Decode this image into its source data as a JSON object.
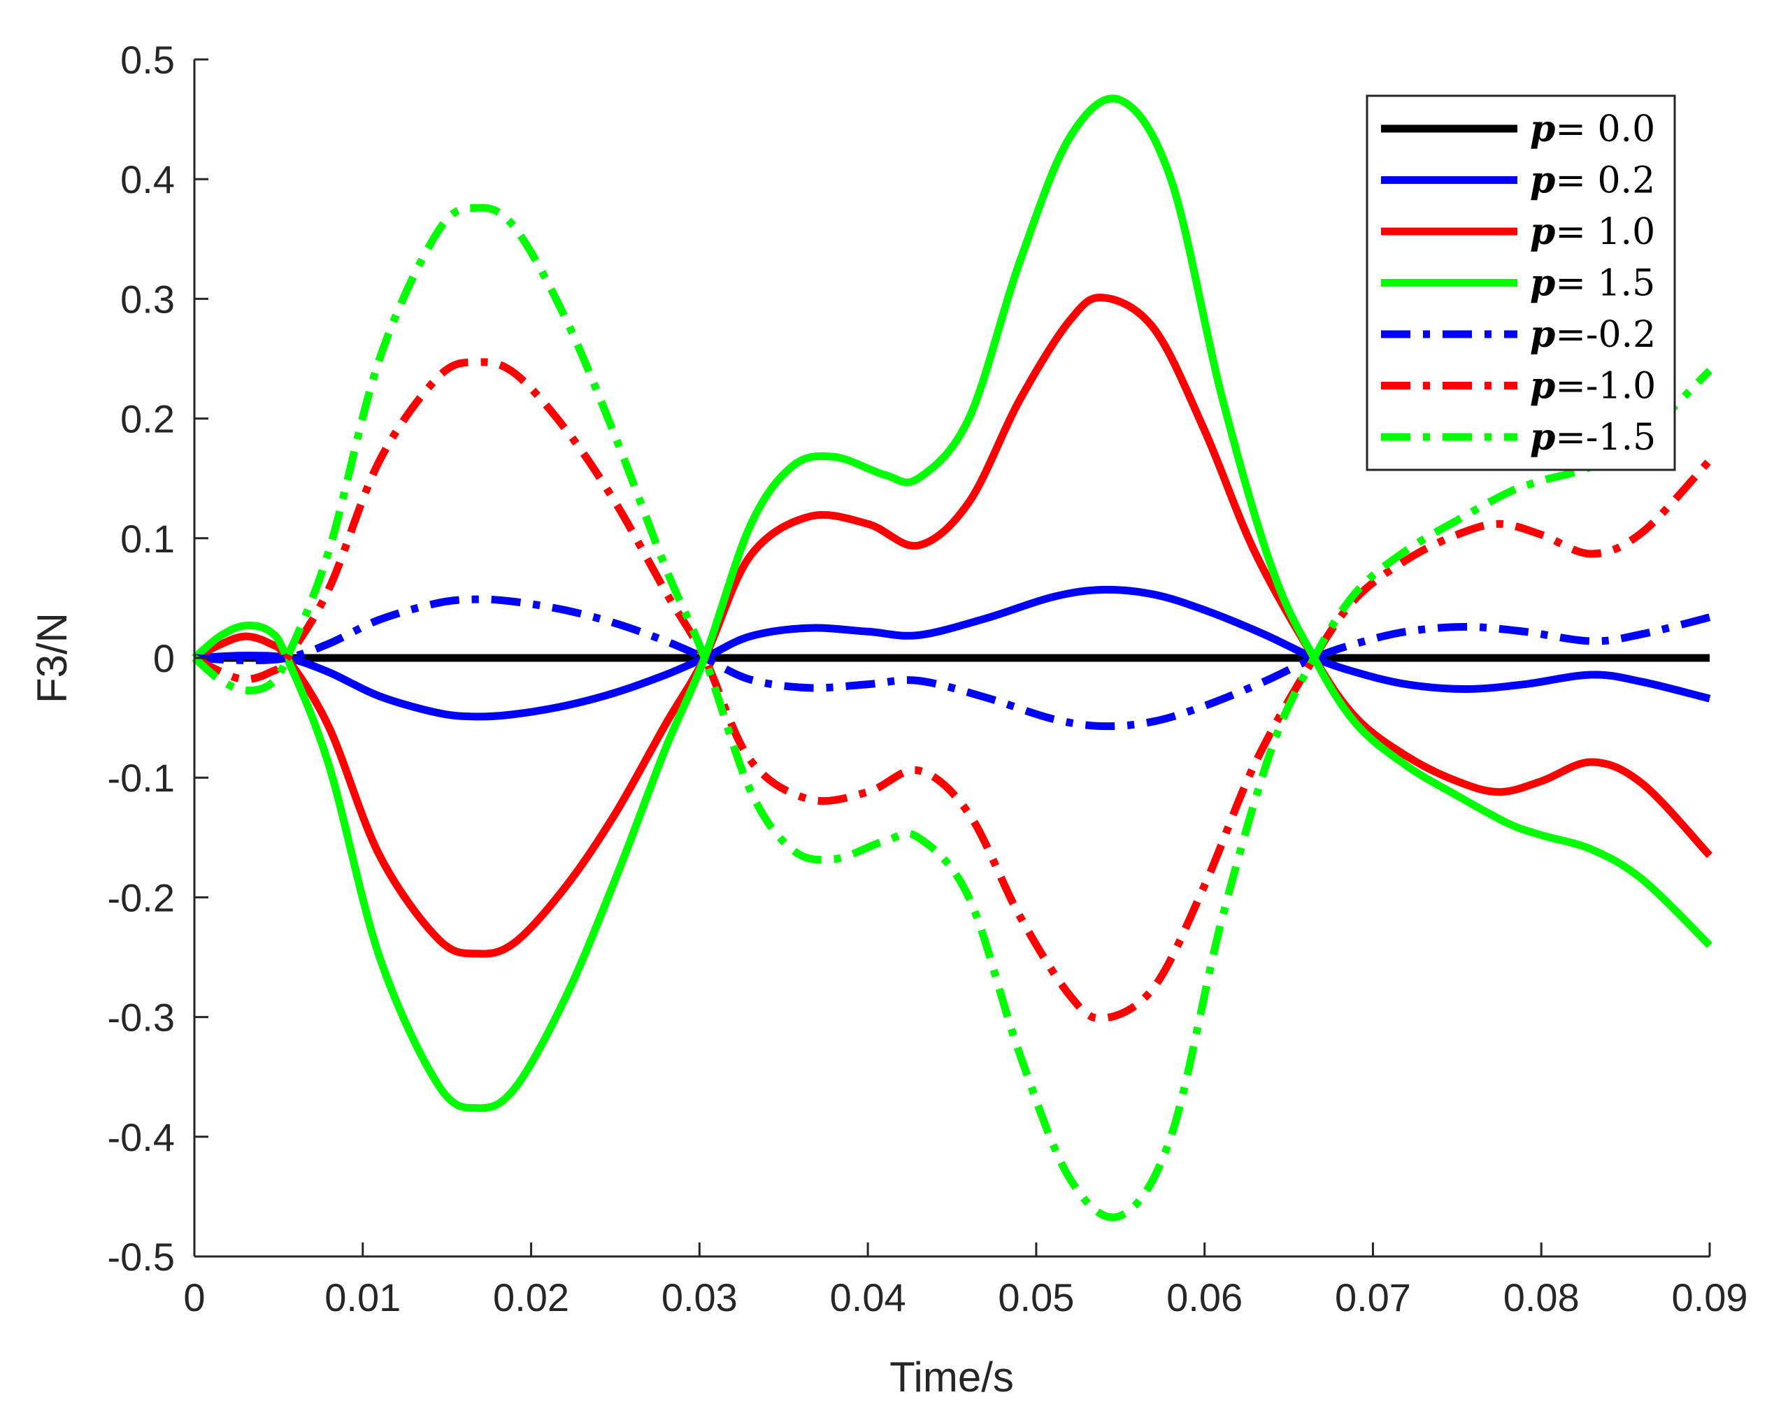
{
  "chart_data": {
    "type": "line",
    "xlabel": "Time/s",
    "ylabel": "F3/N",
    "xlim": [
      0,
      0.09
    ],
    "ylim": [
      -0.5,
      0.5
    ],
    "xticks": [
      "0",
      "0.01",
      "0.02",
      "0.03",
      "0.04",
      "0.05",
      "0.06",
      "0.07",
      "0.08",
      "0.09"
    ],
    "yticks": [
      "0.5",
      "0.4",
      "0.3",
      "0.2",
      "0.1",
      "0",
      "-0.1",
      "-0.2",
      "-0.3",
      "-0.4",
      "-0.5"
    ],
    "xtick_values": [
      0,
      0.01,
      0.02,
      0.03,
      0.04,
      0.05,
      0.06,
      0.07,
      0.08,
      0.09
    ],
    "ytick_values": [
      0.5,
      0.4,
      0.3,
      0.2,
      0.1,
      0,
      -0.1,
      -0.2,
      -0.3,
      -0.4,
      -0.5
    ],
    "grid": false,
    "legend_position": "top-right",
    "series": [
      {
        "name": "p= 0.0",
        "color": "#000000",
        "dash": "solid",
        "x": [
          0,
          0.09
        ],
        "y": [
          0,
          0
        ]
      },
      {
        "name": "p= 0.2",
        "color": "#0000FF",
        "dash": "solid",
        "x": [
          0,
          0.003,
          0.0055,
          0.008,
          0.011,
          0.0145,
          0.0168,
          0.019,
          0.022,
          0.025,
          0.028,
          0.0303,
          0.033,
          0.0365,
          0.04,
          0.043,
          0.047,
          0.051,
          0.054,
          0.057,
          0.06,
          0.0635,
          0.0665,
          0.069,
          0.072,
          0.0755,
          0.079,
          0.083,
          0.086,
          0.09
        ],
        "y": [
          0,
          0.002,
          0,
          -0.012,
          -0.032,
          -0.046,
          -0.049,
          -0.047,
          -0.04,
          -0.029,
          -0.014,
          0,
          0.018,
          0.025,
          0.022,
          0.019,
          0.033,
          0.051,
          0.057,
          0.053,
          0.04,
          0.02,
          0,
          -0.012,
          -0.022,
          -0.026,
          -0.022,
          -0.014,
          -0.02,
          -0.034
        ]
      },
      {
        "name": "p= 1.0",
        "color": "#FF0000",
        "dash": "solid",
        "x": [
          0,
          0.0015,
          0.003,
          0.0045,
          0.0055,
          0.008,
          0.011,
          0.0145,
          0.0168,
          0.019,
          0.022,
          0.025,
          0.028,
          0.0303,
          0.033,
          0.0365,
          0.04,
          0.043,
          0.046,
          0.049,
          0.052,
          0.054,
          0.057,
          0.06,
          0.063,
          0.0665,
          0.069,
          0.072,
          0.075,
          0.0775,
          0.08,
          0.083,
          0.086,
          0.09
        ],
        "y": [
          0,
          0.011,
          0.018,
          0.012,
          0,
          -0.058,
          -0.165,
          -0.235,
          -0.247,
          -0.238,
          -0.192,
          -0.13,
          -0.055,
          0,
          0.085,
          0.118,
          0.112,
          0.094,
          0.13,
          0.215,
          0.282,
          0.301,
          0.275,
          0.19,
          0.088,
          0,
          -0.05,
          -0.082,
          -0.103,
          -0.112,
          -0.103,
          -0.087,
          -0.105,
          -0.165
        ]
      },
      {
        "name": "p= 1.5",
        "color": "#00FF00",
        "dash": "solid",
        "x": [
          0,
          0.0015,
          0.003,
          0.0045,
          0.0055,
          0.008,
          0.011,
          0.0145,
          0.0168,
          0.019,
          0.022,
          0.025,
          0.028,
          0.0303,
          0.033,
          0.0355,
          0.038,
          0.041,
          0.043,
          0.046,
          0.049,
          0.052,
          0.055,
          0.058,
          0.061,
          0.064,
          0.0665,
          0.069,
          0.072,
          0.075,
          0.078,
          0.08,
          0.083,
          0.086,
          0.09
        ],
        "y": [
          0,
          0.018,
          0.027,
          0.022,
          0,
          -0.09,
          -0.25,
          -0.357,
          -0.376,
          -0.36,
          -0.285,
          -0.185,
          -0.075,
          0,
          0.11,
          0.16,
          0.168,
          0.153,
          0.15,
          0.2,
          0.33,
          0.435,
          0.466,
          0.4,
          0.22,
          0.075,
          0,
          -0.055,
          -0.09,
          -0.115,
          -0.138,
          -0.148,
          -0.16,
          -0.185,
          -0.24
        ]
      },
      {
        "name": "p=-0.2",
        "color": "#0000FF",
        "dash": "dashdot",
        "x": [
          0,
          0.003,
          0.0055,
          0.008,
          0.011,
          0.0145,
          0.0168,
          0.019,
          0.022,
          0.025,
          0.028,
          0.0303,
          0.033,
          0.0365,
          0.04,
          0.043,
          0.047,
          0.051,
          0.054,
          0.057,
          0.06,
          0.0635,
          0.0665,
          0.069,
          0.072,
          0.0755,
          0.079,
          0.083,
          0.086,
          0.09
        ],
        "y": [
          0,
          -0.002,
          0,
          0.012,
          0.032,
          0.046,
          0.049,
          0.047,
          0.04,
          0.029,
          0.014,
          0,
          -0.018,
          -0.025,
          -0.022,
          -0.019,
          -0.033,
          -0.051,
          -0.057,
          -0.053,
          -0.04,
          -0.02,
          0,
          0.012,
          0.022,
          0.026,
          0.022,
          0.014,
          0.02,
          0.034
        ]
      },
      {
        "name": "p=-1.0",
        "color": "#FF0000",
        "dash": "dashdot",
        "x": [
          0,
          0.0015,
          0.003,
          0.0045,
          0.0055,
          0.008,
          0.011,
          0.0145,
          0.0168,
          0.019,
          0.022,
          0.025,
          0.028,
          0.0303,
          0.033,
          0.0365,
          0.04,
          0.043,
          0.046,
          0.049,
          0.052,
          0.054,
          0.057,
          0.06,
          0.063,
          0.0665,
          0.069,
          0.072,
          0.075,
          0.0775,
          0.08,
          0.083,
          0.086,
          0.09
        ],
        "y": [
          0,
          -0.011,
          -0.018,
          -0.012,
          0,
          0.058,
          0.165,
          0.235,
          0.247,
          0.238,
          0.192,
          0.13,
          0.055,
          0,
          -0.085,
          -0.118,
          -0.112,
          -0.094,
          -0.13,
          -0.215,
          -0.282,
          -0.301,
          -0.275,
          -0.19,
          -0.088,
          0,
          0.05,
          0.082,
          0.103,
          0.112,
          0.103,
          0.087,
          0.105,
          0.165
        ]
      },
      {
        "name": "p=-1.5",
        "color": "#00FF00",
        "dash": "dashdot",
        "x": [
          0,
          0.0015,
          0.003,
          0.0045,
          0.0055,
          0.008,
          0.011,
          0.0145,
          0.0168,
          0.019,
          0.022,
          0.025,
          0.028,
          0.0303,
          0.033,
          0.0355,
          0.038,
          0.041,
          0.043,
          0.046,
          0.049,
          0.052,
          0.055,
          0.058,
          0.061,
          0.064,
          0.0665,
          0.069,
          0.072,
          0.075,
          0.078,
          0.08,
          0.083,
          0.086,
          0.09
        ],
        "y": [
          0,
          -0.018,
          -0.027,
          -0.022,
          0,
          0.09,
          0.25,
          0.357,
          0.376,
          0.36,
          0.285,
          0.185,
          0.075,
          0,
          -0.11,
          -0.16,
          -0.168,
          -0.153,
          -0.15,
          -0.2,
          -0.33,
          -0.435,
          -0.466,
          -0.4,
          -0.22,
          -0.075,
          0,
          0.055,
          0.09,
          0.115,
          0.138,
          0.148,
          0.16,
          0.185,
          0.24
        ]
      }
    ]
  }
}
